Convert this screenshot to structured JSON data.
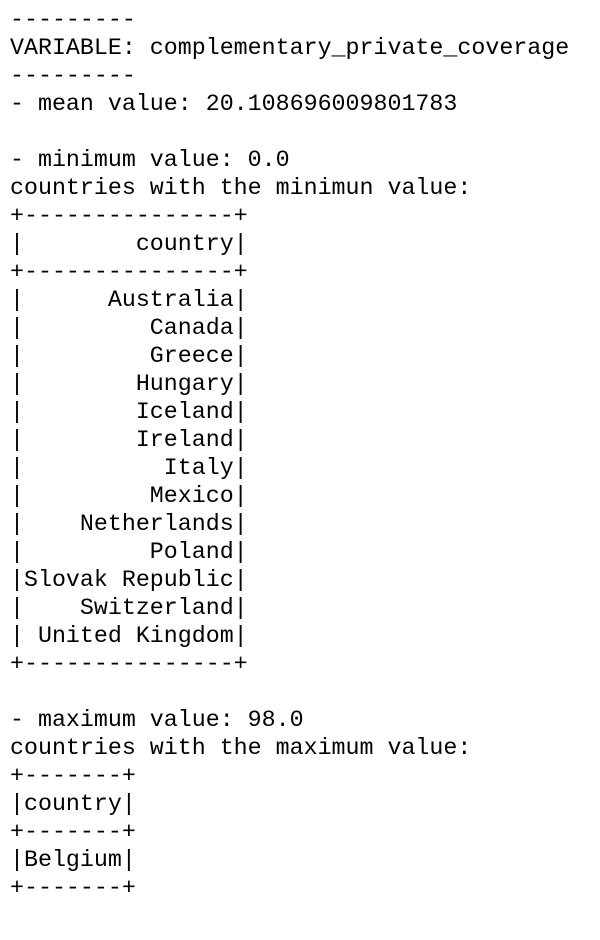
{
  "separator_top": "---------",
  "variable_line": "VARIABLE: complementary_private_coverage",
  "separator_bottom": "---------",
  "mean_line": "- mean value: 20.108696009801783",
  "minimum": {
    "line": "- minimum value: 0.0",
    "caption": "countries with the minimun value:",
    "table": {
      "border": "+---------------+",
      "header": "|        country|",
      "rows": [
        "|      Australia|",
        "|         Canada|",
        "|         Greece|",
        "|        Hungary|",
        "|        Iceland|",
        "|        Ireland|",
        "|          Italy|",
        "|         Mexico|",
        "|    Netherlands|",
        "|         Poland|",
        "|Slovak Republic|",
        "|    Switzerland|",
        "| United Kingdom|"
      ]
    }
  },
  "maximum": {
    "line": "- maximum value: 98.0",
    "caption": "countries with the maximum value:",
    "table": {
      "border": "+-------+",
      "header": "|country|",
      "rows": [
        "|Belgium|"
      ]
    }
  }
}
